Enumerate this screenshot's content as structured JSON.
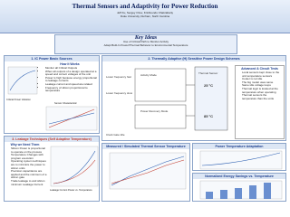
{
  "header": {
    "title": "Thermal Sensors and Adaptivity for Power Reduction",
    "lines": [
      "Jeff Ku, Sergey Ozev, Krishnendu Chakrabarty",
      "Duke University, Durham, North Carolina"
    ]
  },
  "key_ideas": {
    "title": "Key Ideas",
    "lines": [
      "Use of Critical Path to Monitor Activity",
      "Adapt Built-In Power/Thermal Behavior to Environmental Temperature"
    ]
  },
  "sections": [
    {
      "title": "1. IC Power Basic Sources",
      "box_title": "How it Works",
      "bullets": [
        "Monitor all Critical Outputs",
        "When all outputs of a design operated at a speed and correct voltages of the unit",
        "Power is high because energy proportional to leakage currents",
        "Leakage current and speed are related",
        "Frequency of silicon proportional to temperature"
      ],
      "figures": [
        "Critical Power Variation",
        "Sensor Characteristic"
      ]
    },
    {
      "title": "2. Thermally Adaptive (H) Sensitive Power Design Schemes",
      "labels": [
        "Lower frequency fast",
        "Lower frequency slow",
        "Clock Gate Idle",
        "Activity Mode",
        "Power Recovery Mode",
        "Thermal Sensor",
        "25 °C",
        "85 °C"
      ],
      "box_title": "Advanced & Circuit Tests",
      "bullets": [
        "Local sensors kept close to the unit temperature sensors",
        "Cooler is not idle",
        "The big model uses same",
        "Same idle voltage loops",
        "Thermal logic is located at the temperature when operating",
        "Thermal sensors the temperature than the units"
      ]
    },
    {
      "title": "3. Leakage Techniques (Self Adaptive Temperature)",
      "box_title": "Why we Need Them",
      "bullets": [
        "Silicon Power is proportional to operate on the process",
        "Temperature Changes with program execution",
        "Operating system techniques are to minimize the power to silicon units",
        "Precision capacitance are applied and the minimum of a silicon gate",
        "Trade leakage to and silicon minimum Leakage Current"
      ],
      "figures": [
        "Leakage Current Power vs. Temperature"
      ]
    },
    {
      "title": "Measured / Simulated Thermal Sensor Temperature"
    },
    {
      "title": "Power Temperature Adaptation"
    },
    {
      "title": "Normalized Energy Savings vs. Temperature"
    }
  ]
}
